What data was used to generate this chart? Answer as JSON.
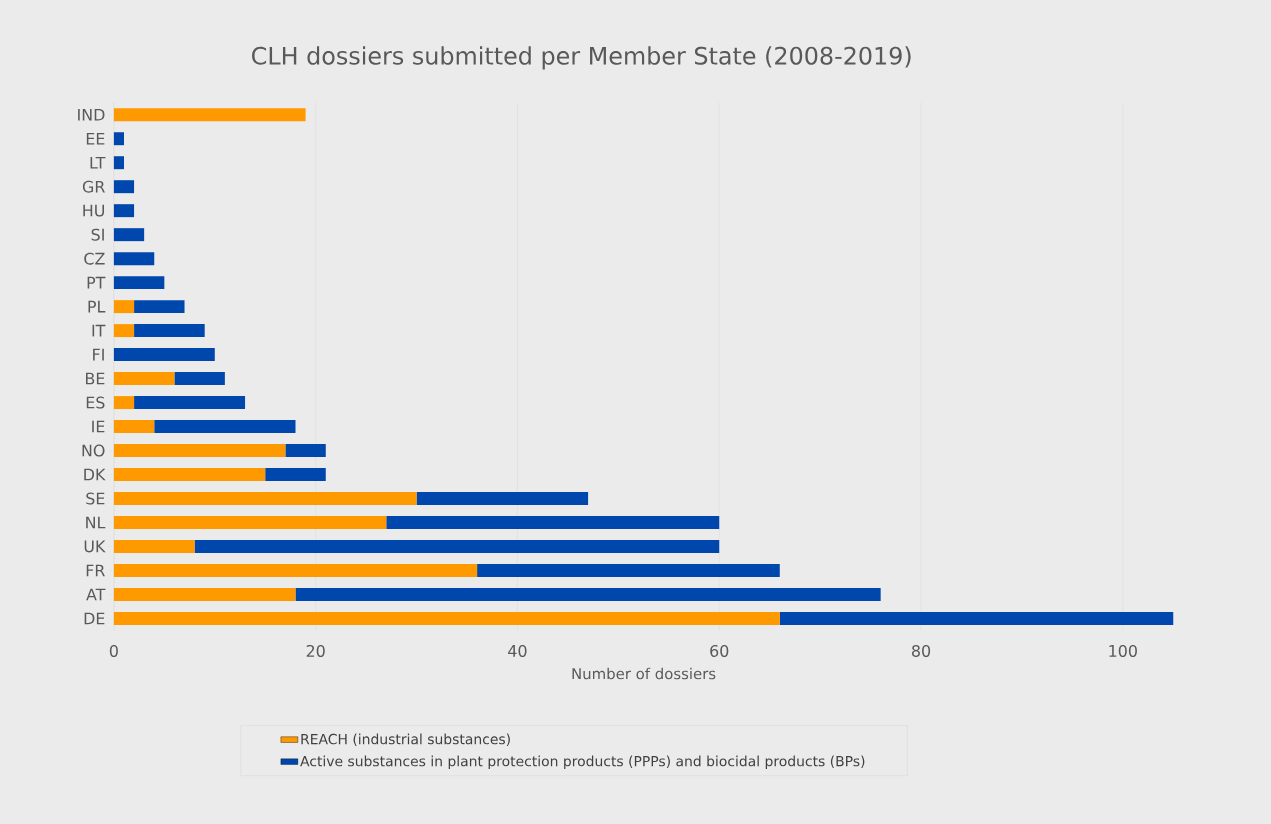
{
  "chart_data": {
    "type": "bar",
    "orientation": "horizontal",
    "stacked": true,
    "title": "CLH dossiers submitted per Member State (2008-2019)",
    "xlabel": "Number of dossiers",
    "categories": [
      "IND",
      "EE",
      "LT",
      "GR",
      "HU",
      "SI",
      "CZ",
      "PT",
      "PL",
      "IT",
      "FI",
      "BE",
      "ES",
      "IE",
      "NO",
      "DK",
      "SE",
      "NL",
      "UK",
      "FR",
      "AT",
      "DE"
    ],
    "series": [
      {
        "name": "REACH (industrial substances)",
        "color": "#ff9900",
        "values": [
          19,
          0,
          0,
          0,
          0,
          0,
          0,
          0,
          2,
          2,
          0,
          6,
          2,
          4,
          17,
          15,
          30,
          27,
          8,
          36,
          18,
          66
        ]
      },
      {
        "name": "Active substances in plant protection products (PPPs) and biocidal products (BPs)",
        "color": "#0047ad",
        "values": [
          0,
          1,
          1,
          2,
          2,
          3,
          4,
          5,
          5,
          7,
          10,
          5,
          11,
          14,
          4,
          6,
          17,
          33,
          52,
          30,
          58,
          39
        ]
      }
    ],
    "xlim": [
      0,
      105
    ],
    "xticks": [
      0,
      20,
      40,
      60,
      80,
      100
    ],
    "grid": "x",
    "legend": "bottom"
  }
}
